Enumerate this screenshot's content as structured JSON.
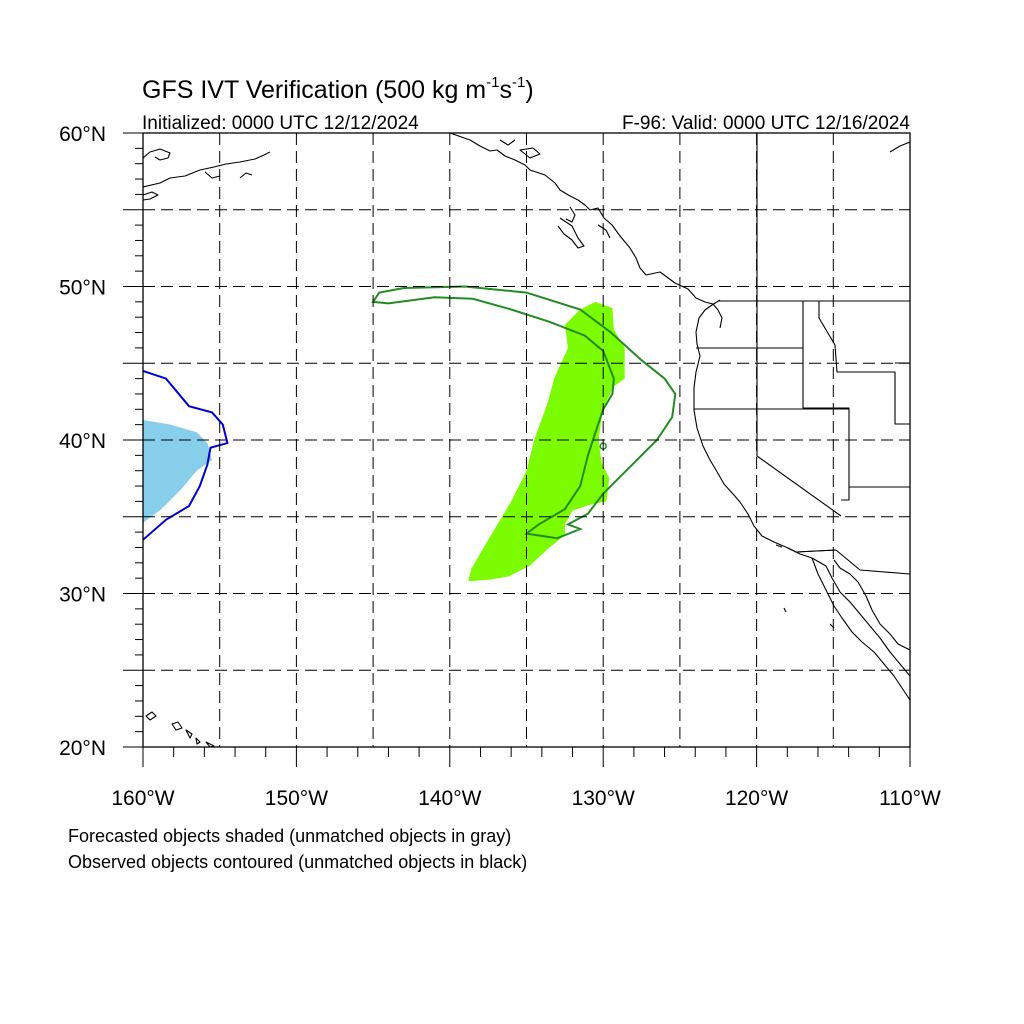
{
  "title": {
    "main": "GFS IVT Verification (500 kg m",
    "exp1": "-1",
    "mid": "s",
    "exp2": "-1",
    "end": ")"
  },
  "initialized": "Initialized: 0000 UTC 12/12/2024",
  "valid": "F-96: Valid: 0000 UTC 12/16/2024",
  "lat_labels": [
    "60°N",
    "50°N",
    "40°N",
    "30°N",
    "20°N"
  ],
  "lon_labels": [
    "160°W",
    "150°W",
    "140°W",
    "130°W",
    "120°W",
    "110°W"
  ],
  "footnotes": [
    "Forecasted objects shaded (unmatched objects in gray)",
    "Observed objects contoured (unmatched objects in black)"
  ],
  "colors": {
    "matched_forecast_a": "#7cfc00",
    "matched_observed_a": "#228b22",
    "matched_forecast_b": "#87ceeb",
    "matched_observed_b": "#0000cd",
    "coastline": "#000000",
    "grid": "#000000"
  },
  "map_extent": {
    "lon_min": -160,
    "lon_max": -110,
    "lat_min": 20,
    "lat_max": 60
  },
  "objects": [
    {
      "kind": "forecast",
      "color_key": "matched_forecast_a",
      "coords": [
        [
          -130.5,
          49
        ],
        [
          -129.4,
          48.6
        ],
        [
          -129.3,
          47.2
        ],
        [
          -128.6,
          46
        ],
        [
          -128.6,
          44
        ],
        [
          -129.3,
          43.5
        ],
        [
          -129.8,
          42.5
        ],
        [
          -130.1,
          41.5
        ],
        [
          -130.3,
          40
        ],
        [
          -130.1,
          38.5
        ],
        [
          -129.6,
          37.5
        ],
        [
          -129.8,
          36
        ],
        [
          -130.8,
          35.8
        ],
        [
          -132,
          35.4
        ],
        [
          -132.5,
          34.5
        ],
        [
          -132.5,
          33.8
        ],
        [
          -133.5,
          33
        ],
        [
          -134.8,
          31.8
        ],
        [
          -136.2,
          31.1
        ],
        [
          -137.5,
          30.9
        ],
        [
          -138.8,
          30.8
        ],
        [
          -138.6,
          31.6
        ],
        [
          -137.5,
          33.5
        ],
        [
          -136,
          36
        ],
        [
          -135,
          38
        ],
        [
          -134.5,
          40
        ],
        [
          -133.6,
          42.5
        ],
        [
          -133.2,
          44
        ],
        [
          -132.3,
          46
        ],
        [
          -132.5,
          47.5
        ],
        [
          -131.5,
          48.5
        ]
      ]
    },
    {
      "kind": "observed",
      "color_key": "matched_observed_a",
      "coords": [
        [
          -145,
          49
        ],
        [
          -144.6,
          49.6
        ],
        [
          -143,
          49.9
        ],
        [
          -139,
          50
        ],
        [
          -135,
          49.6
        ],
        [
          -131.5,
          48.5
        ],
        [
          -129.5,
          47
        ],
        [
          -127.5,
          45.2
        ],
        [
          -126,
          44
        ],
        [
          -125.3,
          43
        ],
        [
          -125.5,
          41.5
        ],
        [
          -126.5,
          40
        ],
        [
          -128.5,
          38
        ],
        [
          -130,
          36.5
        ],
        [
          -131,
          35.2
        ],
        [
          -132.3,
          34.5
        ],
        [
          -131.5,
          34.2
        ],
        [
          -133,
          33.6
        ],
        [
          -135,
          33.9
        ],
        [
          -134.2,
          34.5
        ],
        [
          -132.5,
          35.5
        ],
        [
          -131.5,
          37
        ],
        [
          -131,
          39
        ],
        [
          -130.5,
          40.5
        ],
        [
          -130,
          42
        ],
        [
          -129.4,
          43
        ],
        [
          -129.3,
          44
        ],
        [
          -130,
          45.8
        ],
        [
          -131.2,
          46.8
        ],
        [
          -133.5,
          47.7
        ],
        [
          -136,
          48.5
        ],
        [
          -138.5,
          49.2
        ],
        [
          -141,
          49.3
        ],
        [
          -144,
          48.9
        ]
      ]
    },
    {
      "kind": "forecast",
      "color_key": "matched_forecast_b",
      "coords": [
        [
          -160,
          41.3
        ],
        [
          -158.2,
          41
        ],
        [
          -156.5,
          40.5
        ],
        [
          -155.8,
          39.8
        ],
        [
          -155.5,
          38.7
        ],
        [
          -156.5,
          38
        ],
        [
          -157.5,
          36.8
        ],
        [
          -158.8,
          35.5
        ],
        [
          -160,
          34.6
        ]
      ]
    },
    {
      "kind": "observed",
      "color_key": "matched_observed_b",
      "coords": [
        [
          -160,
          44.5
        ],
        [
          -158.5,
          44
        ],
        [
          -157,
          42.2
        ],
        [
          -155.5,
          41.8
        ],
        [
          -154.8,
          41
        ],
        [
          -154.5,
          39.8
        ],
        [
          -155.6,
          39.5
        ],
        [
          -155.8,
          38.4
        ],
        [
          -156.3,
          37
        ],
        [
          -157,
          35.7
        ],
        [
          -158.5,
          34.8
        ],
        [
          -160,
          33.5
        ]
      ]
    }
  ]
}
